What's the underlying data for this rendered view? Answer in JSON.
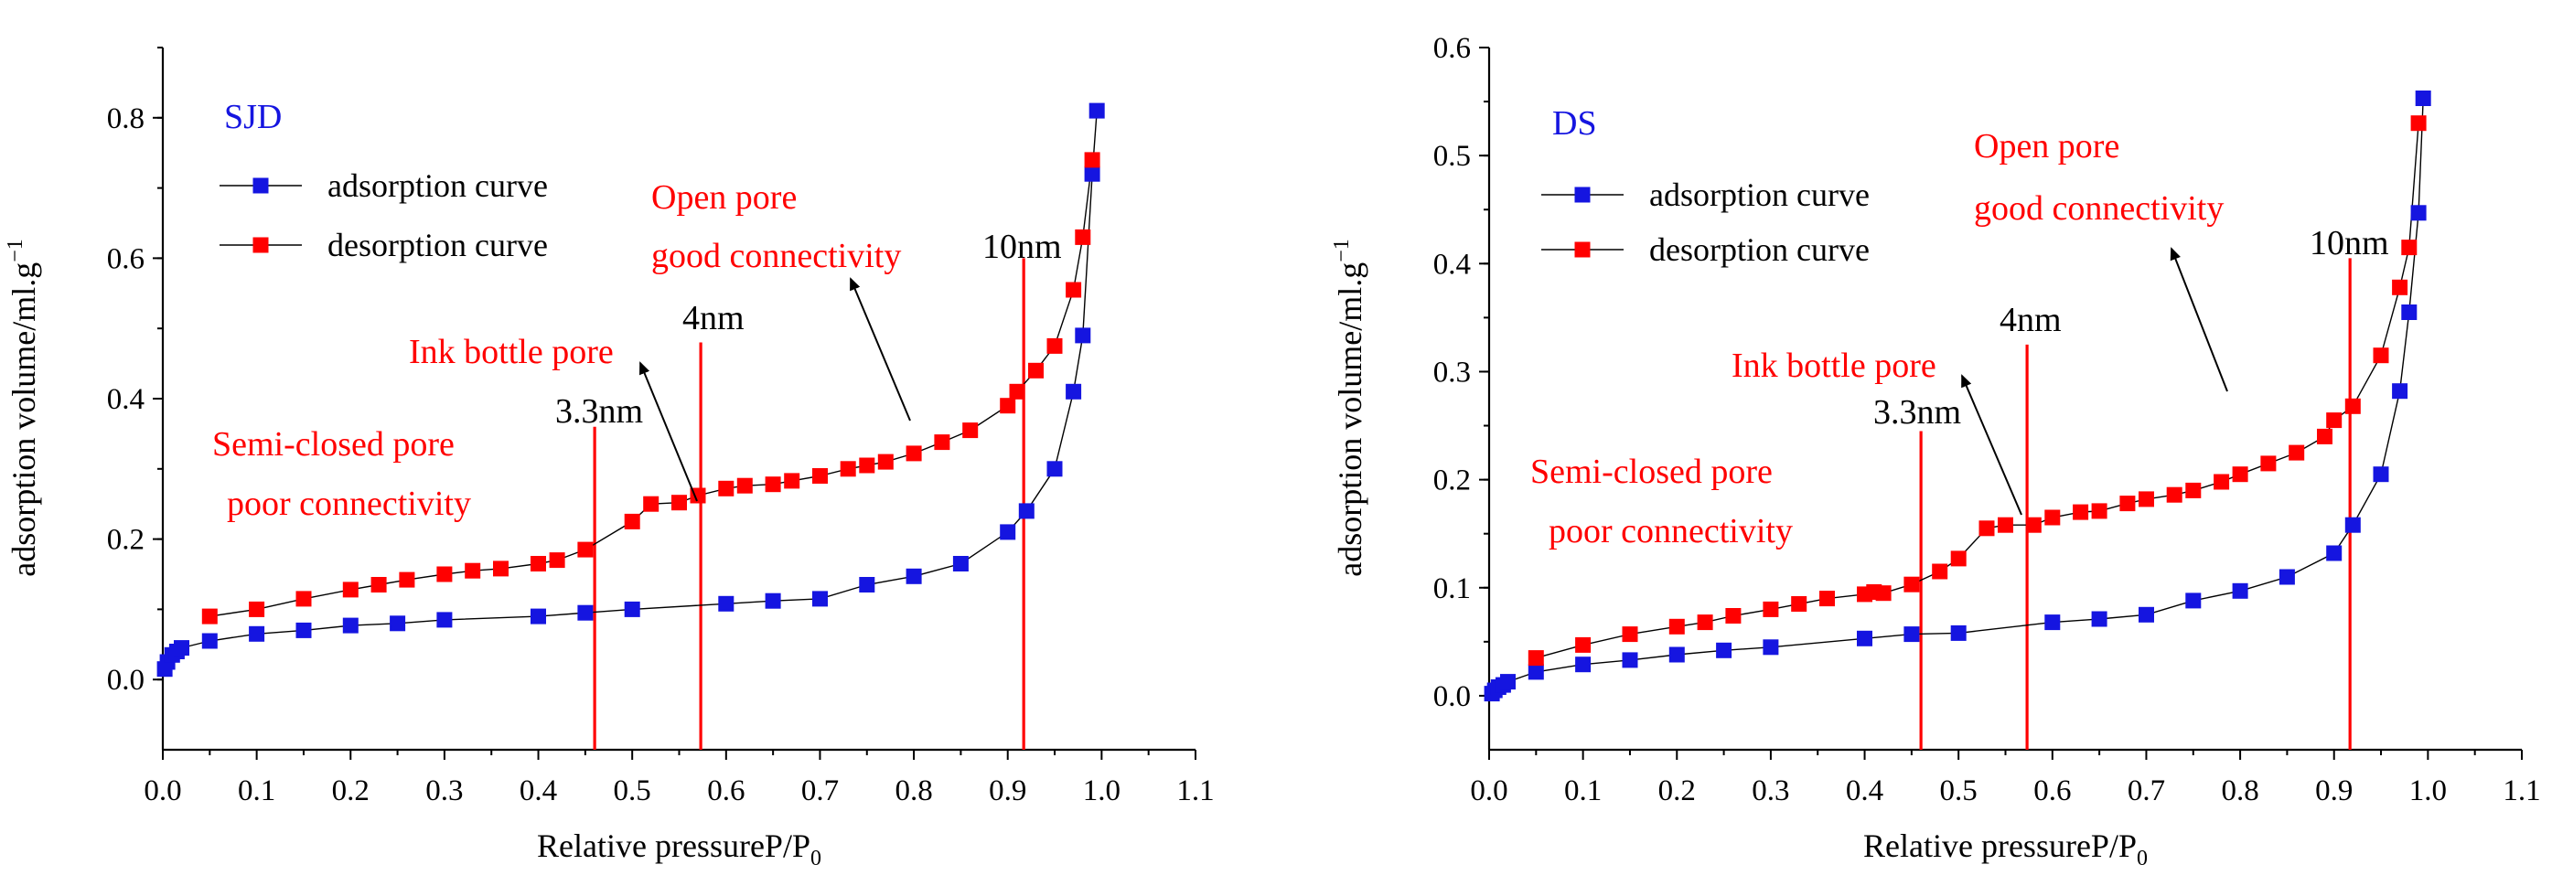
{
  "chart_data": [
    {
      "type": "scatter",
      "title": "SJD",
      "xlabel": "Relative pressureP/P0",
      "xlabel_main": "Relative pressureP/P",
      "xlabel_sub": "0",
      "ylabel": "adsorption volume/ml.g−1",
      "ylabel_main": "adsorption volume/ml.g",
      "ylabel_sup": "−1",
      "xlim": [
        0.0,
        1.1
      ],
      "ylim": [
        -0.1,
        0.9
      ],
      "x_ticks": [
        "0.0",
        "0.1",
        "0.2",
        "0.3",
        "0.4",
        "0.5",
        "0.6",
        "0.7",
        "0.8",
        "0.9",
        "1.0",
        "1.1"
      ],
      "y_ticks": [
        "0.0",
        "0.2",
        "0.4",
        "0.6",
        "0.8"
      ],
      "y_tick_values": [
        0.0,
        0.2,
        0.4,
        0.6,
        0.8
      ],
      "legend": [
        "adsorption curve",
        "desorption curve"
      ],
      "colors": {
        "adsorption": "#1515e0",
        "desorption": "#ff0000"
      },
      "series": [
        {
          "name": "adsorption curve",
          "x": [
            0.002,
            0.005,
            0.01,
            0.015,
            0.02,
            0.05,
            0.1,
            0.15,
            0.2,
            0.25,
            0.3,
            0.4,
            0.45,
            0.5,
            0.6,
            0.65,
            0.7,
            0.75,
            0.8,
            0.85,
            0.9,
            0.92,
            0.95,
            0.97,
            0.98,
            0.99,
            0.995
          ],
          "y": [
            0.015,
            0.025,
            0.035,
            0.04,
            0.045,
            0.055,
            0.065,
            0.07,
            0.077,
            0.08,
            0.085,
            0.09,
            0.095,
            0.1,
            0.108,
            0.112,
            0.115,
            0.135,
            0.147,
            0.165,
            0.21,
            0.24,
            0.3,
            0.41,
            0.49,
            0.72,
            0.81
          ]
        },
        {
          "name": "desorption curve",
          "x": [
            0.05,
            0.1,
            0.15,
            0.2,
            0.23,
            0.26,
            0.3,
            0.33,
            0.36,
            0.4,
            0.42,
            0.45,
            0.5,
            0.52,
            0.55,
            0.57,
            0.6,
            0.62,
            0.65,
            0.67,
            0.7,
            0.73,
            0.75,
            0.77,
            0.8,
            0.83,
            0.86,
            0.9,
            0.91,
            0.93,
            0.95,
            0.97,
            0.98,
            0.99
          ],
          "y": [
            0.09,
            0.1,
            0.115,
            0.128,
            0.135,
            0.142,
            0.15,
            0.155,
            0.158,
            0.165,
            0.17,
            0.185,
            0.225,
            0.25,
            0.252,
            0.262,
            0.272,
            0.276,
            0.278,
            0.283,
            0.29,
            0.3,
            0.305,
            0.31,
            0.322,
            0.338,
            0.355,
            0.39,
            0.41,
            0.44,
            0.475,
            0.555,
            0.63,
            0.74
          ]
        }
      ],
      "vertical_lines": [
        {
          "x": 0.46,
          "y_top": 0.36
        },
        {
          "x": 0.573,
          "y_top": 0.48
        },
        {
          "x": 0.917,
          "y_top": 0.6
        }
      ],
      "annotations": [
        {
          "id": "open1",
          "text": "Open pore",
          "color": "red"
        },
        {
          "id": "open2",
          "text": "good connectivity",
          "color": "red"
        },
        {
          "id": "ink",
          "text": "Ink bottle pore",
          "color": "red"
        },
        {
          "id": "semi1",
          "text": "Semi-closed pore",
          "color": "red"
        },
        {
          "id": "semi2",
          "text": "poor connectivity",
          "color": "red"
        },
        {
          "id": "nm10",
          "text": "10nm",
          "color": "black"
        },
        {
          "id": "nm4",
          "text": "4nm",
          "color": "black"
        },
        {
          "id": "nm33",
          "text": "3.3nm",
          "color": "black"
        }
      ]
    },
    {
      "type": "scatter",
      "title": "DS",
      "xlabel": "Relative pressureP/P0",
      "xlabel_main": "Relative pressureP/P",
      "xlabel_sub": "0",
      "ylabel": "adsorption volume/ml.g−1",
      "ylabel_main": "adsorption volume/ml.g",
      "ylabel_sup": "−1",
      "xlim": [
        0.0,
        1.1
      ],
      "ylim": [
        -0.05,
        0.6
      ],
      "x_ticks": [
        "0.0",
        "0.1",
        "0.2",
        "0.3",
        "0.4",
        "0.5",
        "0.6",
        "0.7",
        "0.8",
        "0.9",
        "1.0",
        "1.1"
      ],
      "y_ticks": [
        "0.0",
        "0.1",
        "0.2",
        "0.3",
        "0.4",
        "0.5",
        "0.6"
      ],
      "y_tick_values": [
        0.0,
        0.1,
        0.2,
        0.3,
        0.4,
        0.5,
        0.6
      ],
      "legend": [
        "adsorption curve",
        "desorption curve"
      ],
      "colors": {
        "adsorption": "#1515e0",
        "desorption": "#ff0000"
      },
      "series": [
        {
          "name": "adsorption curve",
          "x": [
            0.003,
            0.006,
            0.01,
            0.015,
            0.02,
            0.05,
            0.1,
            0.15,
            0.2,
            0.25,
            0.3,
            0.4,
            0.45,
            0.5,
            0.6,
            0.65,
            0.7,
            0.75,
            0.8,
            0.85,
            0.9,
            0.92,
            0.95,
            0.97,
            0.98,
            0.99,
            0.995
          ],
          "y": [
            0.002,
            0.005,
            0.008,
            0.01,
            0.013,
            0.022,
            0.029,
            0.033,
            0.038,
            0.042,
            0.045,
            0.053,
            0.057,
            0.058,
            0.068,
            0.071,
            0.075,
            0.088,
            0.097,
            0.11,
            0.132,
            0.158,
            0.205,
            0.282,
            0.355,
            0.447,
            0.553
          ]
        },
        {
          "name": "desorption curve",
          "x": [
            0.05,
            0.1,
            0.15,
            0.2,
            0.23,
            0.26,
            0.3,
            0.33,
            0.36,
            0.4,
            0.41,
            0.42,
            0.45,
            0.48,
            0.5,
            0.53,
            0.55,
            0.58,
            0.6,
            0.63,
            0.65,
            0.68,
            0.7,
            0.73,
            0.75,
            0.78,
            0.8,
            0.83,
            0.86,
            0.89,
            0.9,
            0.92,
            0.95,
            0.97,
            0.98,
            0.99
          ],
          "y": [
            0.035,
            0.047,
            0.057,
            0.064,
            0.068,
            0.074,
            0.08,
            0.085,
            0.09,
            0.094,
            0.096,
            0.095,
            0.103,
            0.115,
            0.127,
            0.155,
            0.158,
            0.158,
            0.165,
            0.17,
            0.171,
            0.178,
            0.182,
            0.186,
            0.19,
            0.198,
            0.205,
            0.215,
            0.225,
            0.24,
            0.255,
            0.268,
            0.315,
            0.378,
            0.415,
            0.53
          ]
        }
      ],
      "vertical_lines": [
        {
          "x": 0.46,
          "y_top": 0.245
        },
        {
          "x": 0.573,
          "y_top": 0.325
        },
        {
          "x": 0.917,
          "y_top": 0.405
        }
      ],
      "annotations": [
        {
          "id": "open1",
          "text": "Open pore",
          "color": "red"
        },
        {
          "id": "open2",
          "text": "good connectivity",
          "color": "red"
        },
        {
          "id": "ink",
          "text": "Ink bottle pore",
          "color": "red"
        },
        {
          "id": "semi1",
          "text": "Semi-closed pore",
          "color": "red"
        },
        {
          "id": "semi2",
          "text": "poor connectivity",
          "color": "red"
        },
        {
          "id": "nm10",
          "text": "10nm",
          "color": "black"
        },
        {
          "id": "nm4",
          "text": "4nm",
          "color": "black"
        },
        {
          "id": "nm33",
          "text": "3.3nm",
          "color": "black"
        }
      ]
    }
  ]
}
